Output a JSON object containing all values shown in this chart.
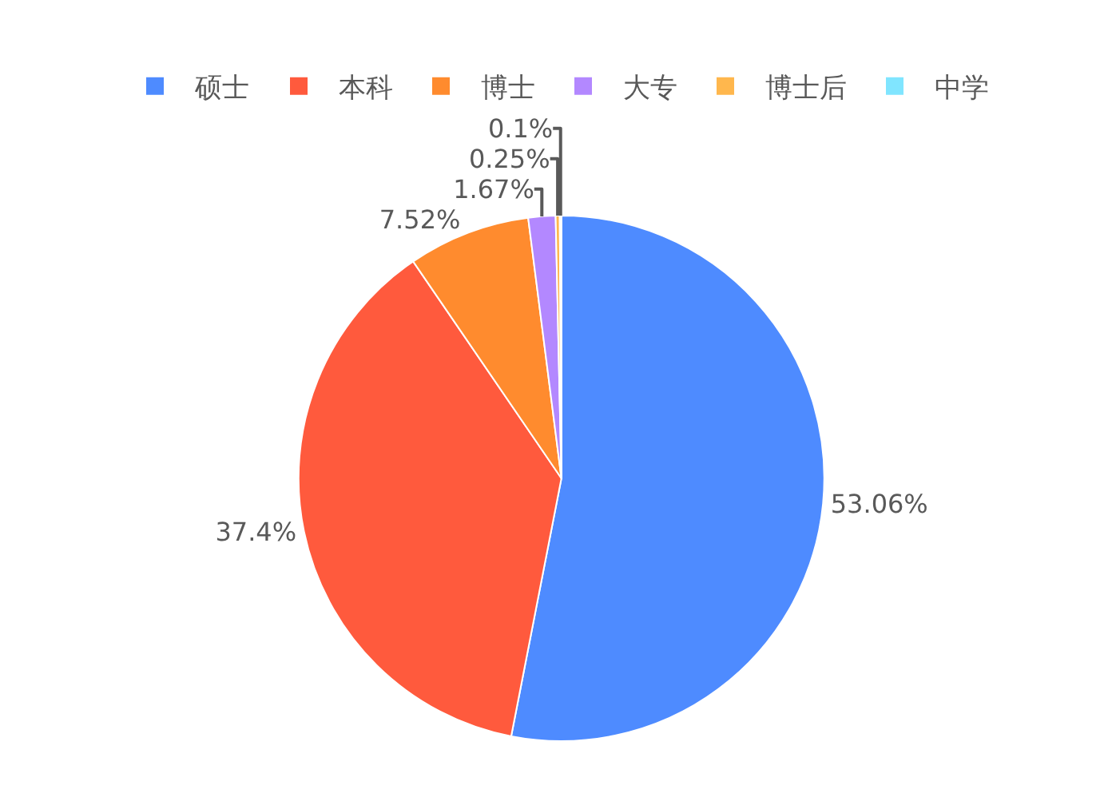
{
  "chart_data": {
    "type": "pie",
    "categories": [
      "硕士",
      "本科",
      "博士",
      "大专",
      "博士后",
      "中学"
    ],
    "values": [
      53.06,
      37.4,
      7.52,
      1.67,
      0.25,
      0.1
    ],
    "colors": [
      "#4e8bff",
      "#ff5a3d",
      "#ff8b2e",
      "#b388ff",
      "#ffb74d",
      "#80e5ff"
    ],
    "value_labels": [
      "53.06%",
      "37.4%",
      "7.52%",
      "1.67%",
      "0.25%",
      "0.1%"
    ],
    "legend": "top"
  }
}
